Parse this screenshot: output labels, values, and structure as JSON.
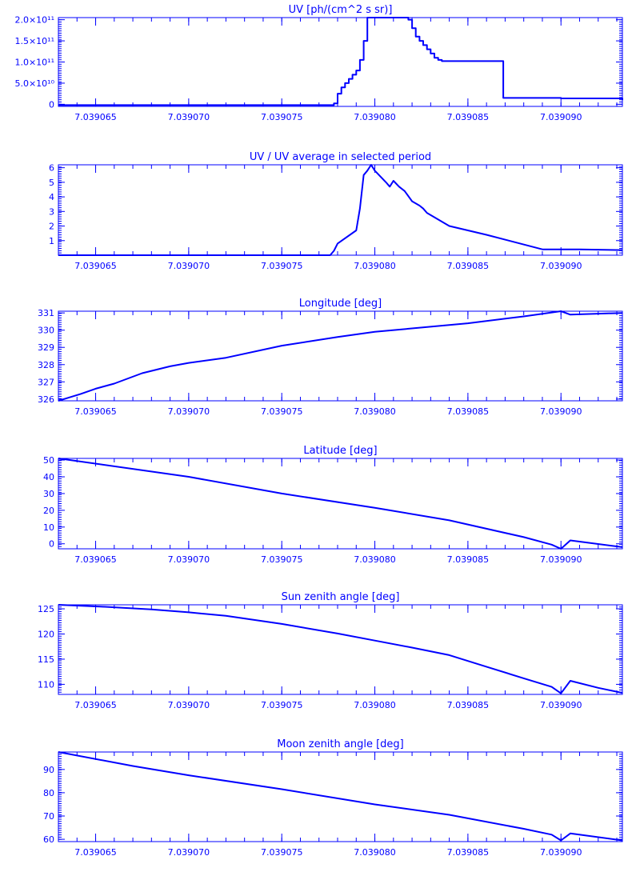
{
  "colors": {
    "line": "#0000ff",
    "background": "#ffffff"
  },
  "chart_data": [
    {
      "type": "line",
      "title": "UV [ph/(cm^2 s sr)]",
      "xlim": [
        7.039063,
        7.0390933
      ],
      "ylim": [
        -5000000000.0,
        205000000000.0
      ],
      "xticks": [
        7.039065,
        7.03907,
        7.039075,
        7.03908,
        7.039085,
        7.03909
      ],
      "xtick_labels": [
        "7.039065",
        "7.039070",
        "7.039075",
        "7.039080",
        "7.039085",
        "7.039090"
      ],
      "yticks": [
        0,
        50000000000.0,
        100000000000.0,
        150000000000.0,
        200000000000.0
      ],
      "ytick_labels": [
        "0",
        "5.0×10¹⁰",
        "1.0×10¹¹",
        "1.5×10¹¹",
        "2.0×10¹¹"
      ],
      "step": true,
      "series": [
        {
          "x": [
            7.039063,
            7.0390776,
            7.0390778,
            7.039078,
            7.0390782,
            7.0390784,
            7.0390786,
            7.0390788,
            7.039079,
            7.0390792,
            7.0390794,
            7.0390796,
            7.0390798,
            7.0390801,
            7.0390804,
            7.0390807,
            7.039081,
            7.0390813,
            7.0390816,
            7.0390818,
            7.039082,
            7.0390822,
            7.0390824,
            7.0390826,
            7.0390828,
            7.039083,
            7.0390832,
            7.0390834,
            7.0390836,
            7.0390838,
            7.039084,
            7.0390869,
            7.03909,
            7.0390933
          ],
          "y": [
            -2000000000.0,
            -2000000000.0,
            2000000000.0,
            25000000000.0,
            40000000000.0,
            50000000000.0,
            60000000000.0,
            70000000000.0,
            80000000000.0,
            105000000000.0,
            150000000000.0,
            205000000000.0,
            205000000000.0,
            205000000000.0,
            205000000000.0,
            205000000000.0,
            205000000000.0,
            205000000000.0,
            205000000000.0,
            200000000000.0,
            180000000000.0,
            160000000000.0,
            150000000000.0,
            140000000000.0,
            130000000000.0,
            120000000000.0,
            110000000000.0,
            105000000000.0,
            102000000000.0,
            102000000000.0,
            102000000000.0,
            15000000000.0,
            14000000000.0,
            10000000000.0
          ]
        }
      ]
    },
    {
      "type": "line",
      "title": "UV / UV average in selected period",
      "xlim": [
        7.039063,
        7.0390933
      ],
      "ylim": [
        0,
        6.2
      ],
      "xticks": [
        7.039065,
        7.03907,
        7.039075,
        7.03908,
        7.039085,
        7.03909
      ],
      "xtick_labels": [
        "7.039065",
        "7.039070",
        "7.039075",
        "7.039080",
        "7.039085",
        "7.039090"
      ],
      "yticks": [
        1,
        2,
        3,
        4,
        5,
        6
      ],
      "ytick_labels": [
        "1",
        "2",
        "3",
        "4",
        "5",
        "6"
      ],
      "series": [
        {
          "x": [
            7.039063,
            7.0390776,
            7.0390778,
            7.039078,
            7.039079,
            7.0390792,
            7.0390794,
            7.0390796,
            7.0390798,
            7.03908,
            7.0390806,
            7.0390808,
            7.039081,
            7.0390813,
            7.0390816,
            7.039082,
            7.0390824,
            7.0390826,
            7.0390828,
            7.039084,
            7.039086,
            7.039089,
            7.039091,
            7.0390933
          ],
          "y": [
            0,
            0,
            0.3,
            0.8,
            1.7,
            3.2,
            5.5,
            5.8,
            6.2,
            5.8,
            5.0,
            4.7,
            5.1,
            4.7,
            4.4,
            3.7,
            3.4,
            3.2,
            2.9,
            2.0,
            1.4,
            0.4,
            0.4,
            0.35
          ]
        }
      ]
    },
    {
      "type": "line",
      "title": "Longitude [deg]",
      "xlim": [
        7.039063,
        7.0390933
      ],
      "ylim": [
        325.9,
        331.1
      ],
      "xticks": [
        7.039065,
        7.03907,
        7.039075,
        7.03908,
        7.039085,
        7.03909
      ],
      "xtick_labels": [
        "7.039065",
        "7.039070",
        "7.039075",
        "7.039080",
        "7.039085",
        "7.039090"
      ],
      "yticks": [
        326,
        327,
        328,
        329,
        330,
        331
      ],
      "ytick_labels": [
        "326",
        "327",
        "328",
        "329",
        "330",
        "331"
      ],
      "series": [
        {
          "x": [
            7.039063,
            7.0390636,
            7.0390642,
            7.039065,
            7.039066,
            7.0390675,
            7.039069,
            7.03907,
            7.039072,
            7.039075,
            7.039078,
            7.03908,
            7.039085,
            7.039088,
            7.03909,
            7.0390905,
            7.0390933
          ],
          "y": [
            325.9,
            326.1,
            326.3,
            326.6,
            326.9,
            327.5,
            327.9,
            328.1,
            328.4,
            329.1,
            329.6,
            329.9,
            330.4,
            330.8,
            331.1,
            330.9,
            331.0
          ]
        }
      ]
    },
    {
      "type": "line",
      "title": "Latitude [deg]",
      "xlim": [
        7.039063,
        7.0390933
      ],
      "ylim": [
        -3,
        51
      ],
      "xticks": [
        7.039065,
        7.03907,
        7.039075,
        7.03908,
        7.039085,
        7.03909
      ],
      "xtick_labels": [
        "7.039065",
        "7.039070",
        "7.039075",
        "7.039080",
        "7.039085",
        "7.039090"
      ],
      "yticks": [
        0,
        10,
        20,
        30,
        40,
        50
      ],
      "ytick_labels": [
        "0",
        "10",
        "20",
        "30",
        "40",
        "50"
      ],
      "series": [
        {
          "x": [
            7.039063,
            7.03907,
            7.039075,
            7.03908,
            7.039084,
            7.039088,
            7.0390895,
            7.03909,
            7.0390905,
            7.0390933
          ],
          "y": [
            51,
            40,
            30,
            21.5,
            14,
            4,
            -0.5,
            -3,
            2,
            -2
          ]
        }
      ]
    },
    {
      "type": "line",
      "title": "Sun zenith angle [deg]",
      "xlim": [
        7.039063,
        7.0390933
      ],
      "ylim": [
        108,
        125.8
      ],
      "xticks": [
        7.039065,
        7.03907,
        7.039075,
        7.03908,
        7.039085,
        7.03909
      ],
      "xtick_labels": [
        "7.039065",
        "7.039070",
        "7.039075",
        "7.039080",
        "7.039085",
        "7.039090"
      ],
      "yticks": [
        110,
        115,
        120,
        125
      ],
      "ytick_labels": [
        "110",
        "115",
        "120",
        "125"
      ],
      "series": [
        {
          "x": [
            7.039063,
            7.0390655,
            7.039068,
            7.03907,
            7.039072,
            7.039075,
            7.039078,
            7.03908,
            7.039082,
            7.039084,
            7.039086,
            7.039088,
            7.0390895,
            7.03909,
            7.0390905,
            7.039092,
            7.0390933
          ],
          "y": [
            125.8,
            125.4,
            124.9,
            124.3,
            123.6,
            122.0,
            120.1,
            118.7,
            117.3,
            115.8,
            113.5,
            111.2,
            109.5,
            108.2,
            110.7,
            109.3,
            108.3
          ]
        }
      ]
    },
    {
      "type": "line",
      "title": "Moon zenith angle [deg]",
      "xlim": [
        7.039063,
        7.0390933
      ],
      "ylim": [
        59,
        97.5
      ],
      "xticks": [
        7.039065,
        7.03907,
        7.039075,
        7.03908,
        7.039085,
        7.03909
      ],
      "xtick_labels": [
        "7.039065",
        "7.039070",
        "7.039075",
        "7.039080",
        "7.039085",
        "7.039090"
      ],
      "yticks": [
        60,
        70,
        80,
        90
      ],
      "ytick_labels": [
        "60",
        "70",
        "80",
        "90"
      ],
      "series": [
        {
          "x": [
            7.039063,
            7.039067,
            7.03907,
            7.039075,
            7.03908,
            7.039084,
            7.039088,
            7.0390895,
            7.03909,
            7.0390905,
            7.0390933
          ],
          "y": [
            97.5,
            91.5,
            87.5,
            81.5,
            75,
            70.5,
            64.5,
            62,
            59.5,
            62.5,
            59.5
          ]
        }
      ]
    }
  ]
}
